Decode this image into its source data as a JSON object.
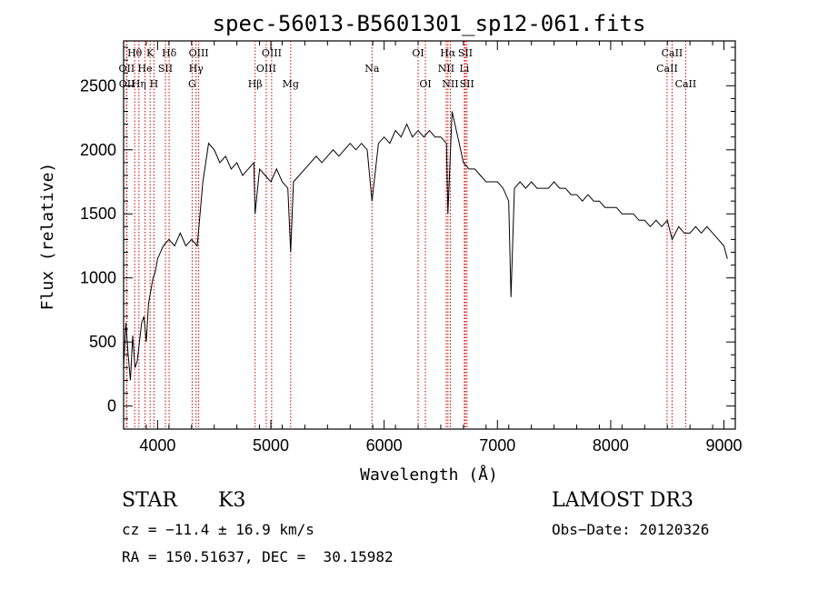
{
  "chart_data": {
    "type": "line",
    "title": "spec-56013-B5601301_sp12-061.fits",
    "xlabel": "Wavelength (Å)",
    "ylabel": "Flux (relative)",
    "xlim": [
      3700,
      9100
    ],
    "ylim": [
      -180,
      2850
    ],
    "xticks": [
      4000,
      5000,
      6000,
      7000,
      8000,
      9000
    ],
    "yticks": [
      0,
      500,
      1000,
      1500,
      2000,
      2500
    ],
    "grid": false,
    "line_color": "#000000",
    "marker_color": "#cc0000",
    "series": [
      {
        "name": "flux",
        "x": [
          3700,
          3720,
          3740,
          3760,
          3780,
          3800,
          3820,
          3840,
          3860,
          3880,
          3900,
          3920,
          3940,
          3960,
          3980,
          4000,
          4050,
          4100,
          4150,
          4200,
          4250,
          4300,
          4350,
          4400,
          4450,
          4500,
          4550,
          4600,
          4650,
          4700,
          4750,
          4800,
          4850,
          4860,
          4900,
          4950,
          5000,
          5050,
          5100,
          5150,
          5175,
          5200,
          5250,
          5300,
          5350,
          5400,
          5450,
          5500,
          5550,
          5600,
          5650,
          5700,
          5750,
          5800,
          5850,
          5893,
          5950,
          6000,
          6050,
          6100,
          6150,
          6200,
          6250,
          6300,
          6350,
          6400,
          6450,
          6500,
          6550,
          6563,
          6600,
          6650,
          6700,
          6750,
          6800,
          6850,
          6900,
          6950,
          7000,
          7050,
          7100,
          7120,
          7150,
          7200,
          7250,
          7300,
          7350,
          7400,
          7450,
          7500,
          7550,
          7600,
          7650,
          7700,
          7750,
          7800,
          7850,
          7900,
          7950,
          8000,
          8050,
          8100,
          8150,
          8200,
          8250,
          8300,
          8350,
          8400,
          8450,
          8500,
          8542,
          8600,
          8650,
          8700,
          8750,
          8800,
          8850,
          8900,
          8950,
          9000,
          9030
        ],
        "y": [
          300,
          650,
          400,
          200,
          550,
          300,
          350,
          500,
          650,
          700,
          500,
          800,
          900,
          1000,
          1050,
          1150,
          1250,
          1300,
          1250,
          1350,
          1250,
          1300,
          1250,
          1750,
          2050,
          2000,
          1900,
          1950,
          1850,
          1900,
          1800,
          1850,
          1900,
          1500,
          1850,
          1800,
          1750,
          1850,
          1750,
          1700,
          1200,
          1750,
          1800,
          1850,
          1900,
          1950,
          1900,
          1950,
          2000,
          1950,
          2000,
          2050,
          2000,
          2050,
          2000,
          1600,
          2050,
          2100,
          2050,
          2150,
          2100,
          2200,
          2100,
          2150,
          2100,
          2150,
          2100,
          2100,
          2050,
          1500,
          2300,
          2100,
          1900,
          1850,
          1850,
          1800,
          1750,
          1750,
          1750,
          1700,
          1600,
          850,
          1700,
          1750,
          1700,
          1750,
          1700,
          1700,
          1700,
          1750,
          1700,
          1700,
          1650,
          1650,
          1600,
          1650,
          1600,
          1600,
          1550,
          1550,
          1550,
          1500,
          1500,
          1500,
          1450,
          1450,
          1400,
          1450,
          1400,
          1450,
          1300,
          1400,
          1350,
          1350,
          1400,
          1350,
          1400,
          1350,
          1300,
          1250,
          1150
        ]
      }
    ],
    "lines": [
      {
        "label": "Hθ",
        "x": 3798,
        "row": 1
      },
      {
        "label": "OII",
        "x": 3727,
        "row": 2
      },
      {
        "label": "OII",
        "x": 3729,
        "row": 3
      },
      {
        "label": "He",
        "x": 3889,
        "row": 2
      },
      {
        "label": "Hη",
        "x": 3835,
        "row": 3
      },
      {
        "label": "K",
        "x": 3934,
        "row": 1
      },
      {
        "label": "H",
        "x": 3968,
        "row": 3
      },
      {
        "label": "SII",
        "x": 4069,
        "row": 2
      },
      {
        "label": "Hδ",
        "x": 4102,
        "row": 1
      },
      {
        "label": "OIII",
        "x": 4363,
        "row": 1
      },
      {
        "label": "Hγ",
        "x": 4340,
        "row": 2
      },
      {
        "label": "G",
        "x": 4305,
        "row": 3
      },
      {
        "label": "OIII",
        "x": 5007,
        "row": 1
      },
      {
        "label": "OIII",
        "x": 4959,
        "row": 2
      },
      {
        "label": "Hβ",
        "x": 4861,
        "row": 3
      },
      {
        "label": "Mg",
        "x": 5175,
        "row": 3
      },
      {
        "label": "Na",
        "x": 5893,
        "row": 2
      },
      {
        "label": "OI",
        "x": 6300,
        "row": 1
      },
      {
        "label": "OI",
        "x": 6364,
        "row": 3
      },
      {
        "label": "Hα",
        "x": 6563,
        "row": 1
      },
      {
        "label": "NII",
        "x": 6548,
        "row": 2
      },
      {
        "label": "NII",
        "x": 6584,
        "row": 3
      },
      {
        "label": "SII",
        "x": 6717,
        "row": 1
      },
      {
        "label": "Li",
        "x": 6708,
        "row": 2
      },
      {
        "label": "SII",
        "x": 6731,
        "row": 3
      },
      {
        "label": "CaII",
        "x": 8542,
        "row": 1
      },
      {
        "label": "CaII",
        "x": 8498,
        "row": 2
      },
      {
        "label": "CaII",
        "x": 8662,
        "row": 3
      }
    ]
  },
  "info": {
    "object_class": "STAR",
    "subclass": "K3",
    "survey": "LAMOST DR3",
    "cz": "cz = −11.4 ± 16.9 km/s",
    "obs_date": "Obs−Date: 20120326",
    "coords": "RA = 150.51637, DEC =  30.15982"
  }
}
